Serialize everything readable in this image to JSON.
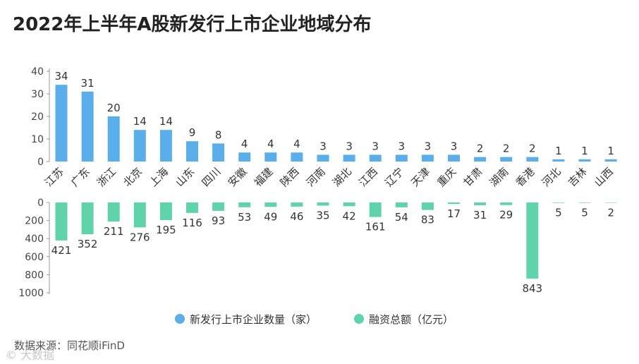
{
  "title": "2022年上半年A股新发行上市企业地域分布",
  "source": "数据来源：同花顺iFinD",
  "watermark": "© 大数据",
  "chart_data": {
    "type": "bar",
    "categories": [
      "江苏",
      "广东",
      "浙江",
      "北京",
      "上海",
      "山东",
      "四川",
      "安徽",
      "福建",
      "陕西",
      "河南",
      "湖北",
      "江西",
      "辽宁",
      "天津",
      "重庆",
      "甘肃",
      "湖南",
      "香港",
      "河北",
      "吉林",
      "山西"
    ],
    "series": [
      {
        "name": "新发行上市企业数量（家）",
        "color": "#5aaeea",
        "values": [
          34,
          31,
          20,
          14,
          14,
          9,
          8,
          4,
          4,
          4,
          3,
          3,
          3,
          3,
          3,
          3,
          2,
          2,
          2,
          1,
          1,
          1
        ],
        "ylim": [
          0,
          40
        ],
        "ticks": [
          0,
          10,
          20,
          30,
          40
        ]
      },
      {
        "name": "融资总额（亿元）",
        "color": "#5fd3aa",
        "values": [
          421,
          352,
          211,
          276,
          195,
          116,
          93,
          53,
          49,
          46,
          35,
          42,
          161,
          54,
          83,
          17,
          31,
          29,
          843,
          5,
          5,
          2
        ],
        "ylim": [
          0,
          1000
        ],
        "ticks": [
          0,
          200,
          400,
          600,
          800,
          1000
        ],
        "inverted": true
      }
    ],
    "legend_position": "bottom-center",
    "grid": false
  }
}
